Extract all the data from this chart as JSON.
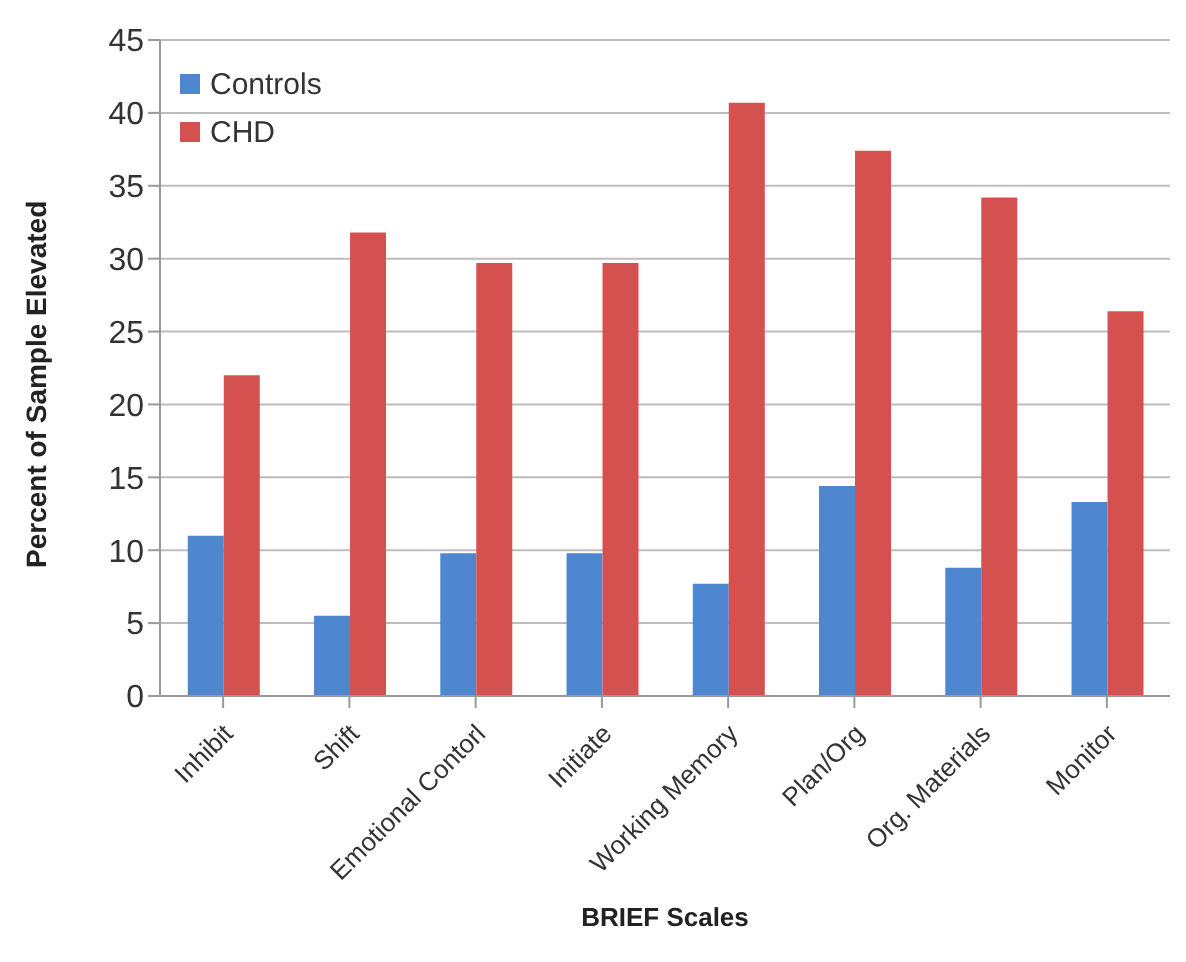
{
  "chart_data": {
    "type": "bar",
    "xlabel": "BRIEF Scales",
    "ylabel": "Percent of Sample Elevated",
    "categories": [
      "Inhibit",
      "Shift",
      "Emotional Contorl",
      "Initiate",
      "Working Memory",
      "Plan/Org",
      "Org. Materials",
      "Monitor"
    ],
    "series": [
      {
        "name": "Controls",
        "color": "#4f86d0",
        "values": [
          11.0,
          5.5,
          9.8,
          9.8,
          7.7,
          14.4,
          8.8,
          13.3
        ]
      },
      {
        "name": "CHD",
        "color": "#d5514f",
        "values": [
          22.0,
          31.8,
          29.7,
          29.7,
          40.7,
          37.4,
          34.2,
          26.4
        ]
      }
    ],
    "ylim": [
      0,
      45
    ],
    "yticks": [
      0,
      5,
      10,
      15,
      20,
      25,
      30,
      35,
      40,
      45
    ],
    "grid": "y",
    "legend": "top left"
  }
}
